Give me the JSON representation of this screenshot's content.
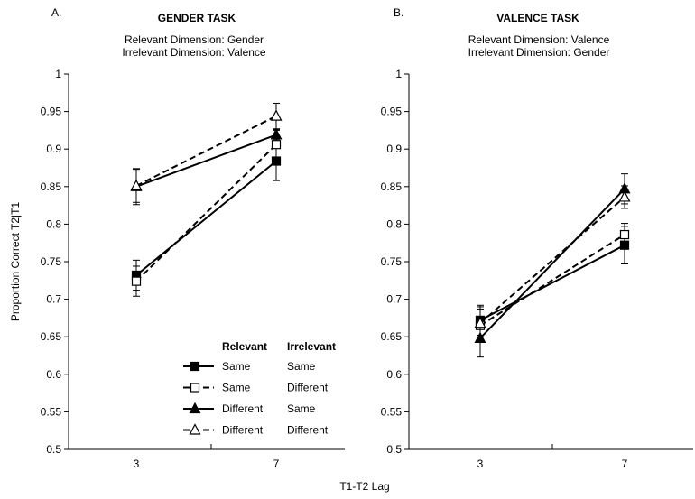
{
  "shared": {
    "ylabel": "Proportion Correct T2|T1",
    "xlabel": "T1-T2 Lag",
    "legend": {
      "header_relevant": "Relevant",
      "header_irrelevant": "Irrelevant",
      "entries": [
        {
          "relevant": "Same",
          "irrelevant": "Same"
        },
        {
          "relevant": "Same",
          "irrelevant": "Different"
        },
        {
          "relevant": "Different",
          "irrelevant": "Same"
        },
        {
          "relevant": "Different",
          "irrelevant": "Different"
        }
      ]
    },
    "yticks": [
      "1",
      "0.95",
      "0.9",
      "0.85",
      "0.8",
      "0.75",
      "0.7",
      "0.65",
      "0.6",
      "0.55",
      "0.5"
    ],
    "xticks": [
      "3",
      "7"
    ]
  },
  "chart_data": [
    {
      "type": "line",
      "panel": "A.",
      "title": "GENDER TASK",
      "subtitle1": "Relevant Dimension: Gender",
      "subtitle2": "Irrelevant Dimension: Valence",
      "x": [
        3,
        7
      ],
      "ylim": [
        0.5,
        1
      ],
      "yticks": [
        1,
        0.95,
        0.9,
        0.85,
        0.8,
        0.75,
        0.7,
        0.65,
        0.6,
        0.55,
        0.5
      ],
      "grid": false,
      "legend_position": "bottom-center",
      "series": [
        {
          "name": "Same / Same",
          "marker": "filled-square",
          "line": "solid",
          "values": [
            0.732,
            0.884
          ],
          "err": [
            0.02,
            0.026
          ]
        },
        {
          "name": "Same / Different",
          "marker": "open-square",
          "line": "dashed",
          "values": [
            0.724,
            0.906
          ],
          "err": [
            0.02,
            0.02
          ]
        },
        {
          "name": "Different / Same",
          "marker": "filled-triangle",
          "line": "solid",
          "values": [
            0.85,
            0.919
          ],
          "err": [
            0.024,
            0.006
          ]
        },
        {
          "name": "Different / Different",
          "marker": "open-triangle",
          "line": "dashed",
          "values": [
            0.851,
            0.944
          ],
          "err": [
            0.022,
            0.017
          ]
        }
      ]
    },
    {
      "type": "line",
      "panel": "B.",
      "title": "VALENCE TASK",
      "subtitle1": "Relevant Dimension: Valence",
      "subtitle2": "Irrelevant Dimension: Gender",
      "x": [
        3,
        7
      ],
      "ylim": [
        0.5,
        1
      ],
      "yticks": [
        1,
        0.95,
        0.9,
        0.85,
        0.8,
        0.75,
        0.7,
        0.65,
        0.6,
        0.55,
        0.5
      ],
      "grid": false,
      "series": [
        {
          "name": "Same / Same",
          "marker": "filled-square",
          "line": "solid",
          "values": [
            0.672,
            0.772
          ],
          "err": [
            0.02,
            0.025
          ]
        },
        {
          "name": "Same / Different",
          "marker": "open-square",
          "line": "dashed",
          "values": [
            0.665,
            0.786
          ],
          "err": [
            0.022,
            0.015
          ]
        },
        {
          "name": "Different / Same",
          "marker": "filled-triangle",
          "line": "solid",
          "values": [
            0.648,
            0.847
          ],
          "err": [
            0.025,
            0.02
          ]
        },
        {
          "name": "Different / Different",
          "marker": "open-triangle",
          "line": "dashed",
          "values": [
            0.668,
            0.836
          ],
          "err": [
            0.022,
            0.015
          ]
        }
      ]
    }
  ]
}
